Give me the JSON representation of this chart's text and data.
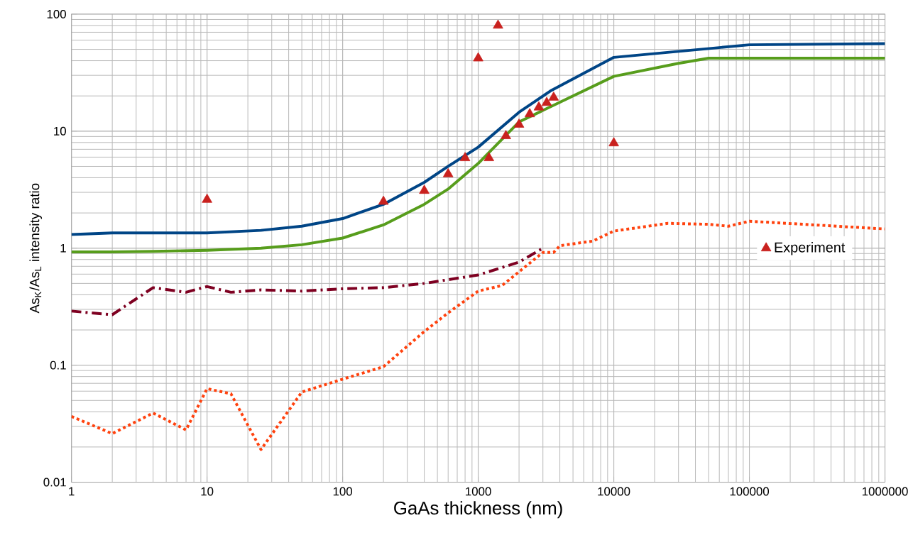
{
  "chart_data": {
    "type": "line",
    "xlabel": "GaAs thickness (nm)",
    "ylabel": "As$_{K}$/As$_{L}$ intensity ratio",
    "log": "xy",
    "grid": true,
    "legend": "right",
    "marker": "none",
    "xlim": [
      1,
      1000000
    ],
    "ylim": [
      0.01,
      100
    ],
    "xticks": [
      1,
      10,
      100,
      1000,
      10000,
      100000,
      1000000
    ],
    "yticks": [
      0.01,
      0.1,
      1,
      10,
      100
    ],
    "series": [
      {
        "color": "#004586",
        "line_style": "solid",
        "x": [
          1,
          2,
          4,
          10,
          25,
          50,
          100,
          200,
          400,
          600,
          1000,
          2000,
          3400,
          10000,
          100000,
          1000000
        ],
        "values": [
          1.31,
          1.35,
          1.35,
          1.35,
          1.42,
          1.54,
          1.79,
          2.37,
          3.65,
          5.0,
          7.3,
          14.5,
          22,
          42.7,
          54.7,
          56
        ]
      },
      {
        "color": "#ff420e",
        "line_style": "dotted",
        "x": [
          1,
          2,
          4,
          7,
          10,
          15,
          25,
          50,
          100,
          200,
          400,
          600,
          1000,
          1500,
          3000,
          3600,
          4000,
          7000,
          10000,
          25000,
          50000,
          70000,
          100000,
          1000000
        ],
        "values": [
          0.0365,
          0.026,
          0.039,
          0.028,
          0.063,
          0.057,
          0.019,
          0.059,
          0.076,
          0.097,
          0.194,
          0.28,
          0.43,
          0.48,
          0.92,
          0.92,
          1.05,
          1.15,
          1.4,
          1.63,
          1.6,
          1.54,
          1.7,
          1.46
        ]
      },
      {
        "type": "scatter",
        "name": "Experiment",
        "color": "#c9211e",
        "marker": "triangle",
        "x": [
          10,
          200,
          400,
          600,
          800,
          1000,
          1200,
          1400,
          1600,
          2000,
          2400,
          2800,
          3200,
          3600,
          10000
        ],
        "values": [
          2.6,
          2.5,
          3.1,
          4.3,
          5.9,
          42,
          5.9,
          80,
          9.1,
          11.4,
          14,
          16,
          17.5,
          19.4,
          7.9
        ]
      },
      {
        "color": "#579d1c",
        "line_style": "solid",
        "x": [
          1,
          2,
          4,
          10,
          25,
          50,
          100,
          200,
          400,
          600,
          1000,
          2000,
          10000,
          30000,
          50000,
          1000000
        ],
        "values": [
          0.93,
          0.93,
          0.94,
          0.96,
          1.0,
          1.07,
          1.22,
          1.58,
          2.37,
          3.2,
          5.3,
          12,
          29.4,
          38,
          42,
          42
        ]
      },
      {
        "color": "#7e0021",
        "line_style": "dashdot",
        "x": [
          1,
          2,
          4,
          7,
          10,
          15,
          25,
          50,
          100,
          200,
          400,
          1000,
          2000,
          3000
        ],
        "values": [
          0.29,
          0.27,
          0.46,
          0.42,
          0.47,
          0.42,
          0.44,
          0.43,
          0.45,
          0.46,
          0.5,
          0.59,
          0.76,
          1.0
        ]
      }
    ]
  }
}
